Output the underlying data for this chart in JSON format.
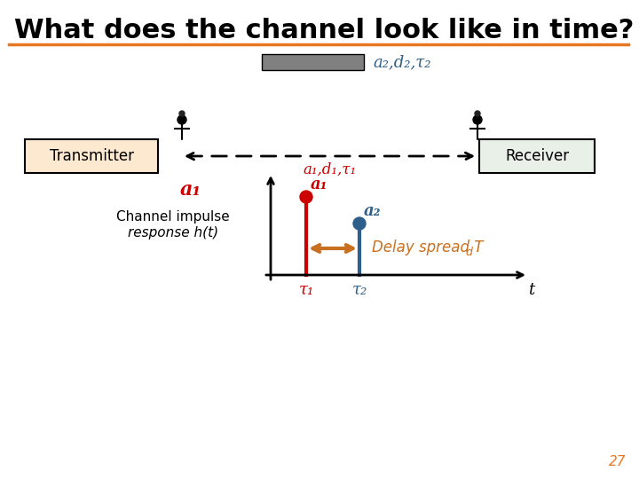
{
  "title": "What does the channel look like in time?",
  "title_fontsize": 22,
  "title_color": "#000000",
  "background_color": "#ffffff",
  "orange_line_color": "#E87722",
  "title_underline_color": "#E87722",
  "gray_rect_color": "#808080",
  "gray_rect_label": "a₂,d₂,τ₂",
  "transmitter_label": "Transmitter",
  "receiver_label": "Receiver",
  "dashed_arrow_label": "a₁,d₁,τ₁",
  "a1_label": "a₁",
  "channel_label_line1": "Channel impulse",
  "channel_label_line2": "response h(t)",
  "a1_stem_label": "a₁",
  "a2_stem_label": "a₂",
  "delay_label": "Delay spread T",
  "delay_label_sub": "d",
  "r1_label": "τ₁",
  "r2_label": "τ₂",
  "t_label": "t",
  "stem1_color": "#cc0000",
  "stem2_color": "#2e5f8a",
  "delay_arrow_color": "#c87020",
  "dashed_arrow_color": "#cc0000",
  "gray_label_color": "#2e5f8a",
  "page_num": "27",
  "tx_box_color": "#fde8d0",
  "rx_box_color": "#e8f0e8"
}
